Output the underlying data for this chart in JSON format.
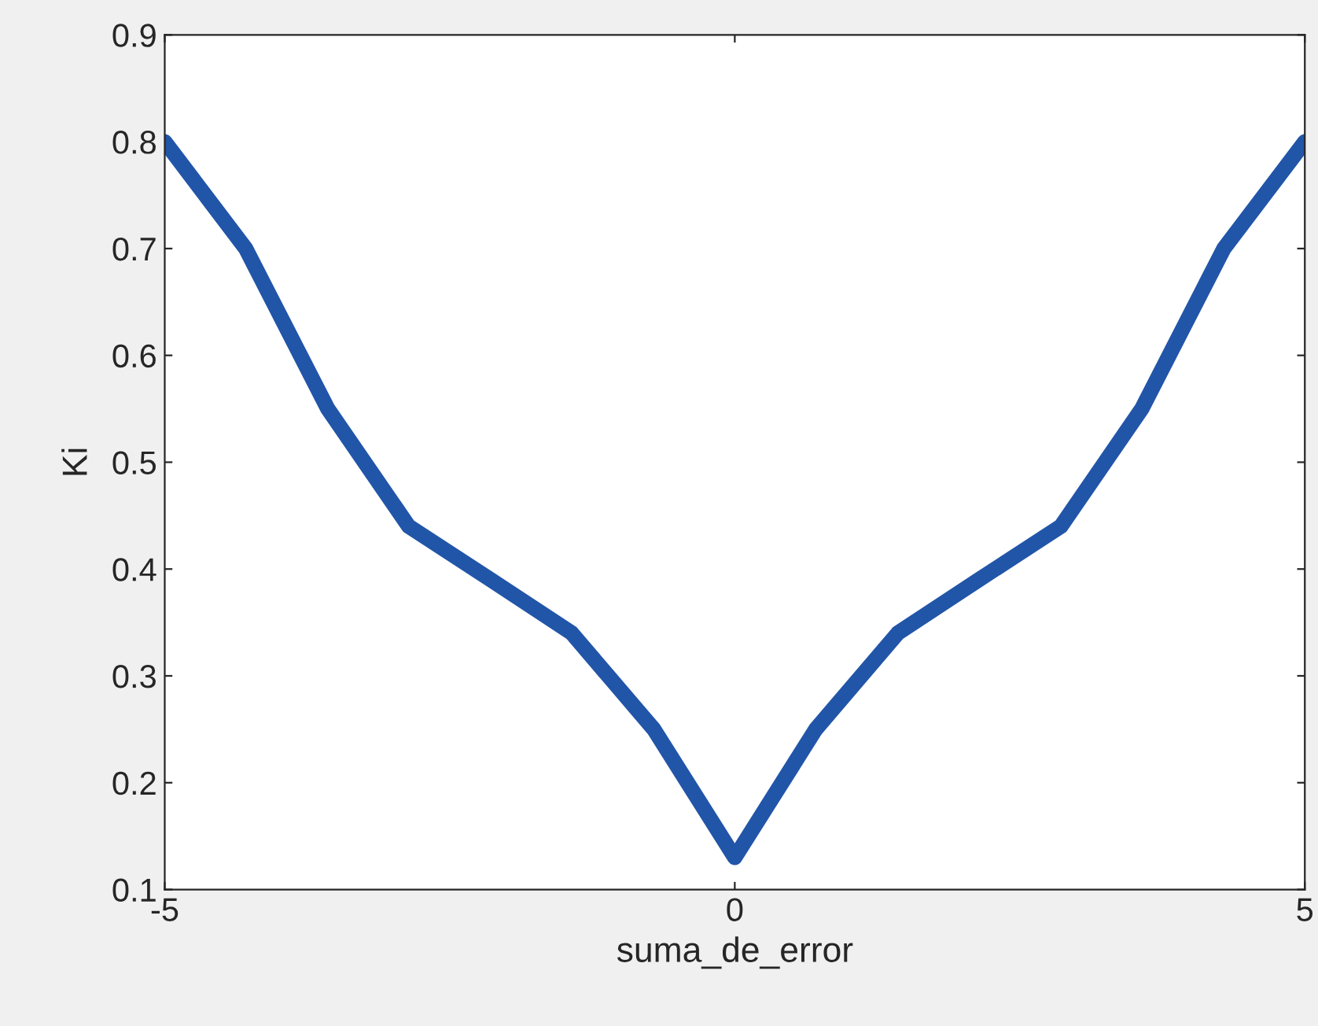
{
  "chart_data": {
    "type": "line",
    "xlabel": "suma_de_error",
    "ylabel": "Ki",
    "x": [
      -5,
      -4.29,
      -3.57,
      -2.86,
      -2.14,
      -1.43,
      -0.71,
      0,
      0.71,
      1.43,
      2.14,
      2.86,
      3.57,
      4.29,
      5
    ],
    "series": [
      {
        "color": "#2155a8",
        "values": [
          0.8,
          0.7,
          0.55,
          0.44,
          0.39,
          0.34,
          0.25,
          0.13,
          0.25,
          0.34,
          0.39,
          0.44,
          0.55,
          0.7,
          0.8
        ]
      }
    ],
    "xlim": [
      -5,
      5
    ],
    "xticks": [
      {
        "value": -5,
        "label": "-5"
      },
      0,
      5
    ],
    "ylim": [
      0.1,
      0.9
    ],
    "yticks": [
      0.1,
      0.2,
      0.3,
      0.4,
      0.5,
      0.6,
      0.7,
      0.8,
      0.9
    ],
    "grid": false,
    "marker": "none",
    "line_style": "solid"
  }
}
